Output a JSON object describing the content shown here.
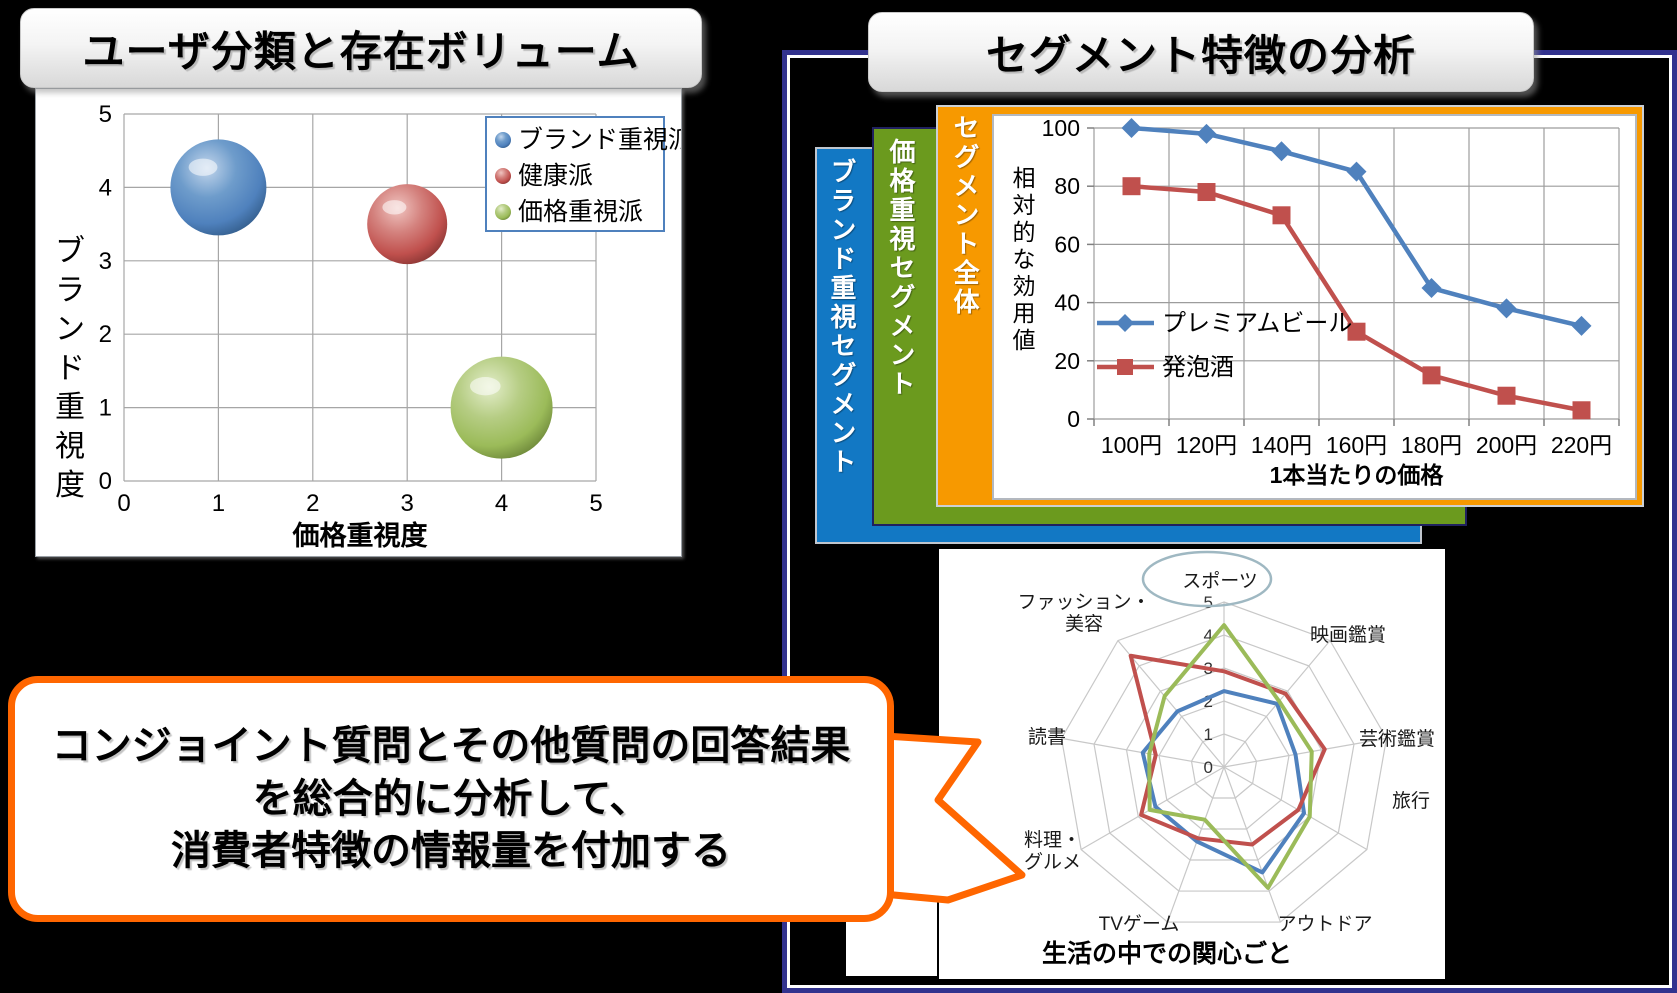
{
  "left_section": {
    "title": "ユーザ分類と存在ボリューム"
  },
  "right_section": {
    "title": "セグメント特徴の分析",
    "layer_labels": [
      {
        "label": "ブランド重視セグメント",
        "color": "#1278C4"
      },
      {
        "label": "価格重視セグメント",
        "color": "#6B9A1E"
      },
      {
        "label": "セグメント全体",
        "color": "#F79900"
      }
    ]
  },
  "speech_bubble": {
    "border_color": "#FF6600",
    "lines": [
      "コンジョイント質問とその他質問の回答結果",
      "を総合的に分析して、",
      "消費者特徴の情報量を付加する"
    ]
  },
  "chart_data": [
    {
      "type": "scatter",
      "title": "ユーザ分類と存在ボリューム",
      "xlabel": "価格重視度",
      "ylabel": "ブランド重視度",
      "xlim": [
        0,
        5
      ],
      "ylim": [
        0,
        5
      ],
      "xticks": [
        "0",
        "1",
        "2",
        "3",
        "4",
        "5"
      ],
      "yticks": [
        "0",
        "1",
        "2",
        "3",
        "4",
        "5"
      ],
      "grid": true,
      "legend_position": "top-right",
      "series": [
        {
          "name": "ブランド重視派",
          "color": "#4F81BD",
          "points": [
            {
              "x": 1,
              "y": 4,
              "r": 48
            }
          ]
        },
        {
          "name": "健康派",
          "color": "#C0504D",
          "points": [
            {
              "x": 3,
              "y": 3.5,
              "r": 40
            }
          ]
        },
        {
          "name": "価格重視派",
          "color": "#9BBB59",
          "points": [
            {
              "x": 4,
              "y": 1,
              "r": 51
            }
          ]
        }
      ]
    },
    {
      "type": "line",
      "categories": [
        "100円",
        "120円",
        "140円",
        "160円",
        "180円",
        "200円",
        "220円"
      ],
      "xlabel": "1本当たりの価格",
      "ylabel": "相対的な効用値",
      "ylim": [
        0,
        100
      ],
      "yticks": [
        0,
        20,
        40,
        60,
        80,
        100
      ],
      "grid": true,
      "legend_position": "inside-bottom-left",
      "series": [
        {
          "name": "プレミアムビール",
          "color": "#4F81BD",
          "marker": "diamond",
          "values": [
            100,
            98,
            92,
            85,
            45,
            38,
            32
          ]
        },
        {
          "name": "発泡酒",
          "color": "#C0504D",
          "marker": "square",
          "values": [
            80,
            78,
            70,
            30,
            15,
            8,
            3
          ]
        }
      ]
    },
    {
      "type": "radar",
      "title": "生活の中での関心ごと",
      "categories": [
        "スポーツ",
        "映画鑑賞",
        "芸術鑑賞",
        "旅行",
        "アウトドア",
        "TVゲーム",
        "料理・グルメ",
        "読書",
        "ファッション・美容"
      ],
      "rmax": 5,
      "rticks": [
        "0",
        "1",
        "2",
        "3",
        "4",
        "5"
      ],
      "highlight_category": "スポーツ",
      "highlight_color": "#9FB8C2",
      "series": [
        {
          "name": "ブランド重視派",
          "color": "#4F81BD",
          "values": [
            2.3,
            2.5,
            2.2,
            2.8,
            3.4,
            2.4,
            2.4,
            2.5,
            2.2
          ]
        },
        {
          "name": "健康派",
          "color": "#C0504D",
          "values": [
            2.9,
            2.9,
            3.1,
            2.6,
            2.5,
            2.3,
            2.9,
            2.1,
            4.4
          ]
        },
        {
          "name": "価格重視派",
          "color": "#9BBB59",
          "values": [
            4.3,
            2.6,
            2.7,
            3.0,
            3.9,
            1.7,
            2.6,
            2.3,
            2.8
          ]
        }
      ]
    }
  ]
}
